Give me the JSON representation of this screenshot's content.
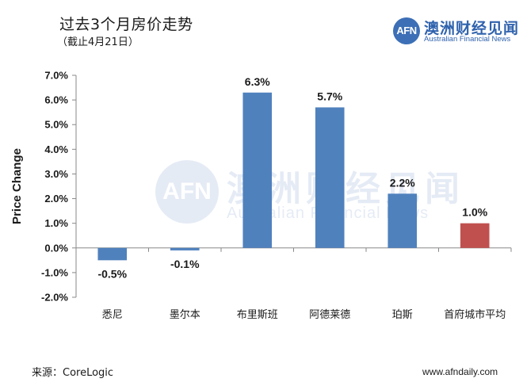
{
  "header": {
    "title": "过去3个月房价走势",
    "subtitle": "（截止4月21日）"
  },
  "logo": {
    "mark": "AFN",
    "name_cn": "澳洲财经见闻",
    "name_en": "Australian Financial News"
  },
  "footer": {
    "source": "来源：CoreLogic",
    "site": "www.afndaily.com"
  },
  "colors": {
    "bar": "#4f81bd",
    "highlight_bar": "#c0504d",
    "axis": "#888888"
  },
  "chart_data": {
    "type": "bar",
    "title": "过去3个月房价走势",
    "ylabel": "Price Change",
    "xlabel": "",
    "ylim": [
      -2.0,
      7.0
    ],
    "ytick_step": 1.0,
    "ytick_labels": [
      "-2.0%",
      "-1.0%",
      "0.0%",
      "1.0%",
      "2.0%",
      "3.0%",
      "4.0%",
      "5.0%",
      "6.0%",
      "7.0%"
    ],
    "categories": [
      "悉尼",
      "墨尔本",
      "布里斯班",
      "阿德莱德",
      "珀斯",
      "首府城市平均"
    ],
    "values": [
      -0.5,
      -0.1,
      6.3,
      5.7,
      2.2,
      1.0
    ],
    "data_labels": [
      "-0.5%",
      "-0.1%",
      "6.3%",
      "5.7%",
      "2.2%",
      "1.0%"
    ],
    "highlight_index": 5,
    "grid": false,
    "legend": "none"
  }
}
